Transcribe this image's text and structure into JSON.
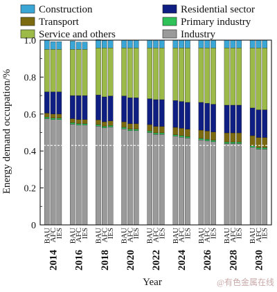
{
  "watermark": "@有色金属在线",
  "chart_data": {
    "type": "bar",
    "stacked": true,
    "ylabel": "Energy demand occupation/%",
    "xlabel": "Year",
    "ylim": [
      0,
      1.0
    ],
    "yticks": [
      0,
      0.2,
      0.4,
      0.6,
      0.8,
      1.0
    ],
    "ytick_labels": [
      "0",
      "0.2",
      "0.4",
      "0.6",
      "0.8",
      "1.0"
    ],
    "reference_line": 0.43,
    "years": [
      "2014",
      "2016",
      "2018",
      "2020",
      "2022",
      "2024",
      "2026",
      "2028",
      "2030"
    ],
    "scenarios": [
      "BAU",
      "AFC",
      "IES"
    ],
    "series_order": [
      "Industry",
      "Primary industry",
      "Transport",
      "Residential sector",
      "Service and others",
      "Construction"
    ],
    "legend": [
      {
        "name": "Construction",
        "color": "#3aa6d6"
      },
      {
        "name": "Residential sector",
        "color": "#0f1e82"
      },
      {
        "name": "Transport",
        "color": "#7c6a10"
      },
      {
        "name": "Primary industry",
        "color": "#2fc258"
      },
      {
        "name": "Service and others",
        "color": "#9cba48"
      },
      {
        "name": "Industry",
        "color": "#9a9a9a"
      }
    ],
    "series": [
      {
        "name": "Industry",
        "color": "#9a9a9a",
        "values": [
          0.575,
          0.57,
          0.57,
          0.545,
          0.54,
          0.54,
          0.535,
          0.525,
          0.53,
          0.52,
          0.51,
          0.51,
          0.5,
          0.49,
          0.49,
          0.48,
          0.475,
          0.47,
          0.46,
          0.455,
          0.45,
          0.44,
          0.44,
          0.44,
          0.42,
          0.41,
          0.41
        ]
      },
      {
        "name": "Primary industry",
        "color": "#2fc258",
        "values": [
          0.008,
          0.008,
          0.008,
          0.008,
          0.008,
          0.008,
          0.008,
          0.008,
          0.008,
          0.008,
          0.008,
          0.008,
          0.008,
          0.008,
          0.008,
          0.008,
          0.008,
          0.008,
          0.008,
          0.008,
          0.008,
          0.008,
          0.008,
          0.008,
          0.008,
          0.008,
          0.008
        ]
      },
      {
        "name": "Transport",
        "color": "#7c6a10",
        "values": [
          0.022,
          0.022,
          0.022,
          0.022,
          0.022,
          0.022,
          0.025,
          0.025,
          0.025,
          0.03,
          0.03,
          0.03,
          0.035,
          0.035,
          0.035,
          0.04,
          0.04,
          0.04,
          0.045,
          0.045,
          0.045,
          0.05,
          0.05,
          0.05,
          0.055,
          0.055,
          0.055
        ]
      },
      {
        "name": "Residential sector",
        "color": "#0f1e82",
        "values": [
          0.115,
          0.12,
          0.12,
          0.125,
          0.13,
          0.13,
          0.135,
          0.135,
          0.135,
          0.14,
          0.14,
          0.14,
          0.14,
          0.145,
          0.145,
          0.145,
          0.145,
          0.145,
          0.15,
          0.15,
          0.15,
          0.15,
          0.15,
          0.15,
          0.15,
          0.15,
          0.15
        ]
      },
      {
        "name": "Service and others",
        "color": "#9cba48",
        "values": [
          0.23,
          0.23,
          0.23,
          0.25,
          0.25,
          0.25,
          0.255,
          0.265,
          0.26,
          0.26,
          0.27,
          0.27,
          0.275,
          0.28,
          0.28,
          0.285,
          0.29,
          0.295,
          0.295,
          0.3,
          0.305,
          0.31,
          0.31,
          0.31,
          0.325,
          0.335,
          0.335
        ]
      },
      {
        "name": "Construction",
        "color": "#3aa6d6",
        "values": [
          0.05,
          0.042,
          0.042,
          0.045,
          0.04,
          0.04,
          0.045,
          0.04,
          0.042,
          0.042,
          0.042,
          0.042,
          0.042,
          0.042,
          0.042,
          0.042,
          0.042,
          0.042,
          0.042,
          0.042,
          0.042,
          0.042,
          0.042,
          0.042,
          0.042,
          0.042,
          0.042
        ]
      }
    ]
  }
}
